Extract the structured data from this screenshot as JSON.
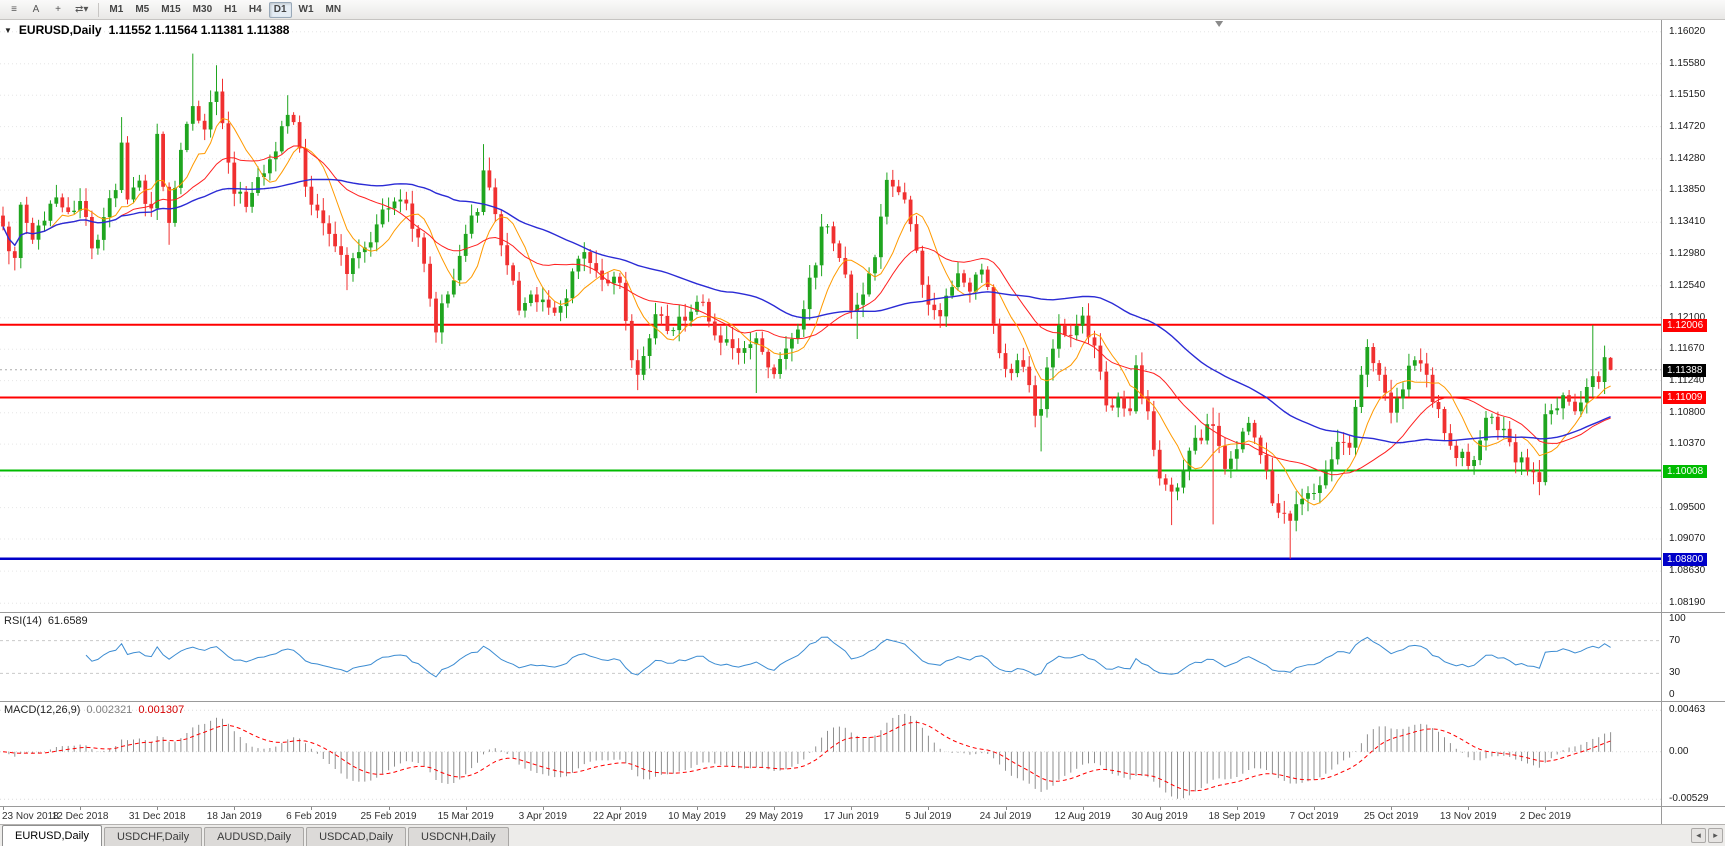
{
  "toolbar": {
    "icons": [
      {
        "name": "templates-icon",
        "glyph": "≡"
      },
      {
        "name": "annotation-icon",
        "glyph": "A"
      },
      {
        "name": "crosshair-icon",
        "glyph": "+"
      },
      {
        "name": "cycle-symbols-icon",
        "glyph": "⇄▾"
      }
    ],
    "timeframes": [
      "M1",
      "M5",
      "M15",
      "M30",
      "H1",
      "H4",
      "D1",
      "W1",
      "MN"
    ],
    "active_timeframe": "D1"
  },
  "chart": {
    "dropdown_glyph": "▼",
    "title_symbol": "EURUSD,Daily",
    "title_ohlc": "1.11552 1.11564 1.11381 1.11388"
  },
  "chart_data": {
    "type": "candlestick",
    "symbol": "EURUSD",
    "timeframe": "Daily",
    "ohlc": {
      "open": 1.11552,
      "high": 1.11564,
      "low": 1.11381,
      "close": 1.11388
    },
    "seed": 7,
    "noise": 0.0014,
    "candle_count": 272,
    "total_slots": 280,
    "bars_per_label": 13,
    "colors": {
      "up": "#1FA51F",
      "down": "#F03030"
    },
    "price_axis": {
      "min": 1.0807,
      "max": 1.1618,
      "ticks": [
        {
          "label": "1.16020",
          "value": 1.1602
        },
        {
          "label": "1.15580",
          "value": 1.1558
        },
        {
          "label": "1.15150",
          "value": 1.1515
        },
        {
          "label": "1.14720",
          "value": 1.1472
        },
        {
          "label": "1.14280",
          "value": 1.1428
        },
        {
          "label": "1.13850",
          "value": 1.1385
        },
        {
          "label": "1.13410",
          "value": 1.1341
        },
        {
          "label": "1.12980",
          "value": 1.1298
        },
        {
          "label": "1.12540",
          "value": 1.1254
        },
        {
          "label": "1.12100",
          "value": 1.121
        },
        {
          "label": "1.11670",
          "value": 1.1167
        },
        {
          "label": "1.11240",
          "value": 1.1124
        },
        {
          "label": "1.10800",
          "value": 1.108
        },
        {
          "label": "1.10370",
          "value": 1.1037
        },
        {
          "label": "1.09930",
          "value": 1.0993
        },
        {
          "label": "1.09500",
          "value": 1.095
        },
        {
          "label": "1.09070",
          "value": 1.0907
        },
        {
          "label": "1.08630",
          "value": 1.0863
        },
        {
          "label": "1.08190",
          "value": 1.0819
        }
      ]
    },
    "x_labels": [
      "23 Nov 2018",
      "12 Dec 2018",
      "31 Dec 2018",
      "18 Jan 2019",
      "6 Feb 2019",
      "25 Feb 2019",
      "15 Mar 2019",
      "3 Apr 2019",
      "22 Apr 2019",
      "10 May 2019",
      "29 May 2019",
      "17 Jun 2019",
      "5 Jul 2019",
      "24 Jul 2019",
      "12 Aug 2019",
      "30 Aug 2019",
      "18 Sep 2019",
      "7 Oct 2019",
      "25 Oct 2019",
      "13 Nov 2019",
      "2 Dec 2019"
    ],
    "anchors": [
      [
        0,
        1.1335
      ],
      [
        2,
        1.1292
      ],
      [
        3,
        1.1365
      ],
      [
        5,
        1.1317
      ],
      [
        7,
        1.1343
      ],
      [
        9,
        1.1375
      ],
      [
        11,
        1.1355
      ],
      [
        13,
        1.137
      ],
      [
        15,
        1.1305
      ],
      [
        17,
        1.1348
      ],
      [
        19,
        1.1385
      ],
      [
        20,
        1.145
      ],
      [
        21,
        1.1372
      ],
      [
        23,
        1.1398
      ],
      [
        25,
        1.136
      ],
      [
        26,
        1.1462
      ],
      [
        28,
        1.134
      ],
      [
        30,
        1.144
      ],
      [
        32,
        1.15
      ],
      [
        34,
        1.1468
      ],
      [
        36,
        1.152
      ],
      [
        39,
        1.138
      ],
      [
        41,
        1.1362
      ],
      [
        44,
        1.1408
      ],
      [
        46,
        1.1438
      ],
      [
        48,
        1.1488
      ],
      [
        50,
        1.1442
      ],
      [
        52,
        1.1365
      ],
      [
        55,
        1.1325
      ],
      [
        58,
        1.127
      ],
      [
        60,
        1.13
      ],
      [
        63,
        1.1338
      ],
      [
        65,
        1.136
      ],
      [
        67,
        1.1372
      ],
      [
        70,
        1.132
      ],
      [
        73,
        1.119
      ],
      [
        75,
        1.1242
      ],
      [
        78,
        1.1325
      ],
      [
        80,
        1.1355
      ],
      [
        81,
        1.1412
      ],
      [
        83,
        1.1352
      ],
      [
        85,
        1.1282
      ],
      [
        87,
        1.122
      ],
      [
        89,
        1.1242
      ],
      [
        91,
        1.1235
      ],
      [
        94,
        1.1226
      ],
      [
        98,
        1.13
      ],
      [
        101,
        1.1262
      ],
      [
        104,
        1.1258
      ],
      [
        106,
        1.1152
      ],
      [
        107,
        1.1132
      ],
      [
        109,
        1.1182
      ],
      [
        110,
        1.1215
      ],
      [
        112,
        1.1192
      ],
      [
        115,
        1.1206
      ],
      [
        117,
        1.1232
      ],
      [
        119,
        1.1205
      ],
      [
        121,
        1.1176
      ],
      [
        124,
        1.1162
      ],
      [
        127,
        1.1182
      ],
      [
        129,
        1.1142
      ],
      [
        130,
        1.1133
      ],
      [
        132,
        1.1168
      ],
      [
        135,
        1.1222
      ],
      [
        137,
        1.1282
      ],
      [
        138,
        1.1335
      ],
      [
        140,
        1.1312
      ],
      [
        141,
        1.1292
      ],
      [
        143,
        1.122
      ],
      [
        145,
        1.1242
      ],
      [
        147,
        1.1293
      ],
      [
        149,
        1.1399
      ],
      [
        151,
        1.1382
      ],
      [
        152,
        1.1372
      ],
      [
        154,
        1.1302
      ],
      [
        156,
        1.1228
      ],
      [
        158,
        1.1212
      ],
      [
        161,
        1.1271
      ],
      [
        163,
        1.1246
      ],
      [
        165,
        1.1276
      ],
      [
        167,
        1.1202
      ],
      [
        169,
        1.114
      ],
      [
        171,
        1.1152
      ],
      [
        172,
        1.1143
      ],
      [
        174,
        1.1076
      ],
      [
        175,
        1.1085
      ],
      [
        176,
        1.1142
      ],
      [
        178,
        1.12
      ],
      [
        180,
        1.1186
      ],
      [
        182,
        1.1213
      ],
      [
        184,
        1.1172
      ],
      [
        186,
        1.109
      ],
      [
        188,
        1.1102
      ],
      [
        190,
        1.1082
      ],
      [
        191,
        1.1145
      ],
      [
        193,
        1.1082
      ],
      [
        195,
        1.099
      ],
      [
        197,
        1.0972
      ],
      [
        199,
        1.1002
      ],
      [
        200,
        1.1028
      ],
      [
        202,
        1.1042
      ],
      [
        204,
        1.1062
      ],
      [
        206,
        1.1003
      ],
      [
        208,
        1.103
      ],
      [
        210,
        1.1066
      ],
      [
        212,
        1.1022
      ],
      [
        214,
        1.0956
      ],
      [
        216,
        1.0942
      ],
      [
        217,
        1.0932
      ],
      [
        219,
        1.0962
      ],
      [
        221,
        1.097
      ],
      [
        223,
        1.1002
      ],
      [
        225,
        1.104
      ],
      [
        227,
        1.1032
      ],
      [
        229,
        1.1132
      ],
      [
        230,
        1.117
      ],
      [
        232,
        1.1132
      ],
      [
        234,
        1.108
      ],
      [
        236,
        1.1112
      ],
      [
        238,
        1.1152
      ],
      [
        240,
        1.1132
      ],
      [
        243,
        1.1052
      ],
      [
        245,
        1.1018
      ],
      [
        247,
        1.1007
      ],
      [
        249,
        1.1042
      ],
      [
        250,
        1.1073
      ],
      [
        253,
        1.1058
      ],
      [
        255,
        1.1012
      ],
      [
        257,
        1.1001
      ],
      [
        259,
        1.0985
      ],
      [
        260,
        1.1078
      ],
      [
        262,
        1.1086
      ],
      [
        263,
        1.1104
      ],
      [
        265,
        1.1082
      ],
      [
        266,
        1.1094
      ],
      [
        268,
        1.113
      ],
      [
        269,
        1.1122
      ],
      [
        270,
        1.1156
      ],
      [
        271,
        1.11388
      ]
    ],
    "spikes": [
      {
        "i": 2,
        "low": 1.1275
      },
      {
        "i": 20,
        "high": 1.1485
      },
      {
        "i": 28,
        "low": 1.131
      },
      {
        "i": 32,
        "high": 1.1572
      },
      {
        "i": 36,
        "high": 1.1556
      },
      {
        "i": 48,
        "high": 1.1515
      },
      {
        "i": 58,
        "low": 1.1248
      },
      {
        "i": 73,
        "low": 1.1176
      },
      {
        "i": 81,
        "high": 1.1448
      },
      {
        "i": 87,
        "low": 1.1214
      },
      {
        "i": 107,
        "low": 1.1111
      },
      {
        "i": 121,
        "low": 1.116
      },
      {
        "i": 127,
        "low": 1.1107
      },
      {
        "i": 138,
        "high": 1.1348
      },
      {
        "i": 144,
        "low": 1.1181
      },
      {
        "i": 150,
        "high": 1.1412
      },
      {
        "i": 175,
        "low": 1.1027
      },
      {
        "i": 183,
        "high": 1.123
      },
      {
        "i": 197,
        "low": 1.0926
      },
      {
        "i": 204,
        "low": 1.0927
      },
      {
        "i": 204,
        "high": 1.1087
      },
      {
        "i": 217,
        "low": 1.088
      },
      {
        "i": 259,
        "low": 1.0981
      },
      {
        "i": 268,
        "high": 1.12
      },
      {
        "i": 270,
        "high": 1.1172
      }
    ],
    "last_candle": {
      "open": 1.11552,
      "high": 1.11564,
      "low": 1.11381,
      "close": 1.11388
    },
    "moving_averages": [
      {
        "period": 8,
        "color": "#FF9A00",
        "width": 1
      },
      {
        "period": 20,
        "color": "#FF2020",
        "width": 1
      },
      {
        "period": 50,
        "color": "#2B2BD5",
        "width": 1.4
      }
    ],
    "levels": [
      {
        "price": 1.12006,
        "label": "1.12006",
        "color": "#FF0000",
        "width": 2
      },
      {
        "price": 1.11009,
        "label": "1.11009",
        "color": "#FF0000",
        "width": 2
      },
      {
        "price": 1.10008,
        "label": "1.10008",
        "color": "#00BB00",
        "width": 2
      },
      {
        "price": 1.088,
        "label": "1.08800",
        "color": "#0000C8",
        "width": 2.5
      }
    ],
    "current_price": {
      "value": 1.11388,
      "label": "1.11388",
      "line_color": "#ABABAB",
      "flag_bg": "#000000"
    },
    "shift_marker_slot": 205,
    "rsi": {
      "name": "RSI(14)",
      "value": "61.6589",
      "period": 14,
      "color": "#3C8CD2",
      "levels": [
        70,
        30
      ],
      "range": [
        0,
        100
      ],
      "ticks": [
        {
          "label": "100",
          "value": 100
        },
        {
          "label": "70",
          "value": 70
        },
        {
          "label": "30",
          "value": 30
        },
        {
          "label": "0",
          "value": 0
        }
      ]
    },
    "macd": {
      "name": "MACD(12,26,9)",
      "value_main": "0.002321",
      "value_signal": "0.001307",
      "fast": 12,
      "slow": 26,
      "signal": 9,
      "histogram_color": "#8F8F8F",
      "signal_color": "#FF0000",
      "range": [
        -0.0056,
        0.0051
      ],
      "ticks": [
        {
          "label": "0.00463",
          "value": 0.00463
        },
        {
          "label": "0.00",
          "value": 0
        },
        {
          "label": "-0.00529",
          "value": -0.00529
        }
      ]
    }
  },
  "tabs": {
    "items": [
      {
        "label": "EURUSD,Daily",
        "active": true
      },
      {
        "label": "USDCHF,Daily",
        "active": false
      },
      {
        "label": "AUDUSD,Daily",
        "active": false
      },
      {
        "label": "USDCAD,Daily",
        "active": false
      },
      {
        "label": "USDCNH,Daily",
        "active": false
      }
    ],
    "scroll_left_glyph": "◂",
    "scroll_right_glyph": "▸"
  }
}
